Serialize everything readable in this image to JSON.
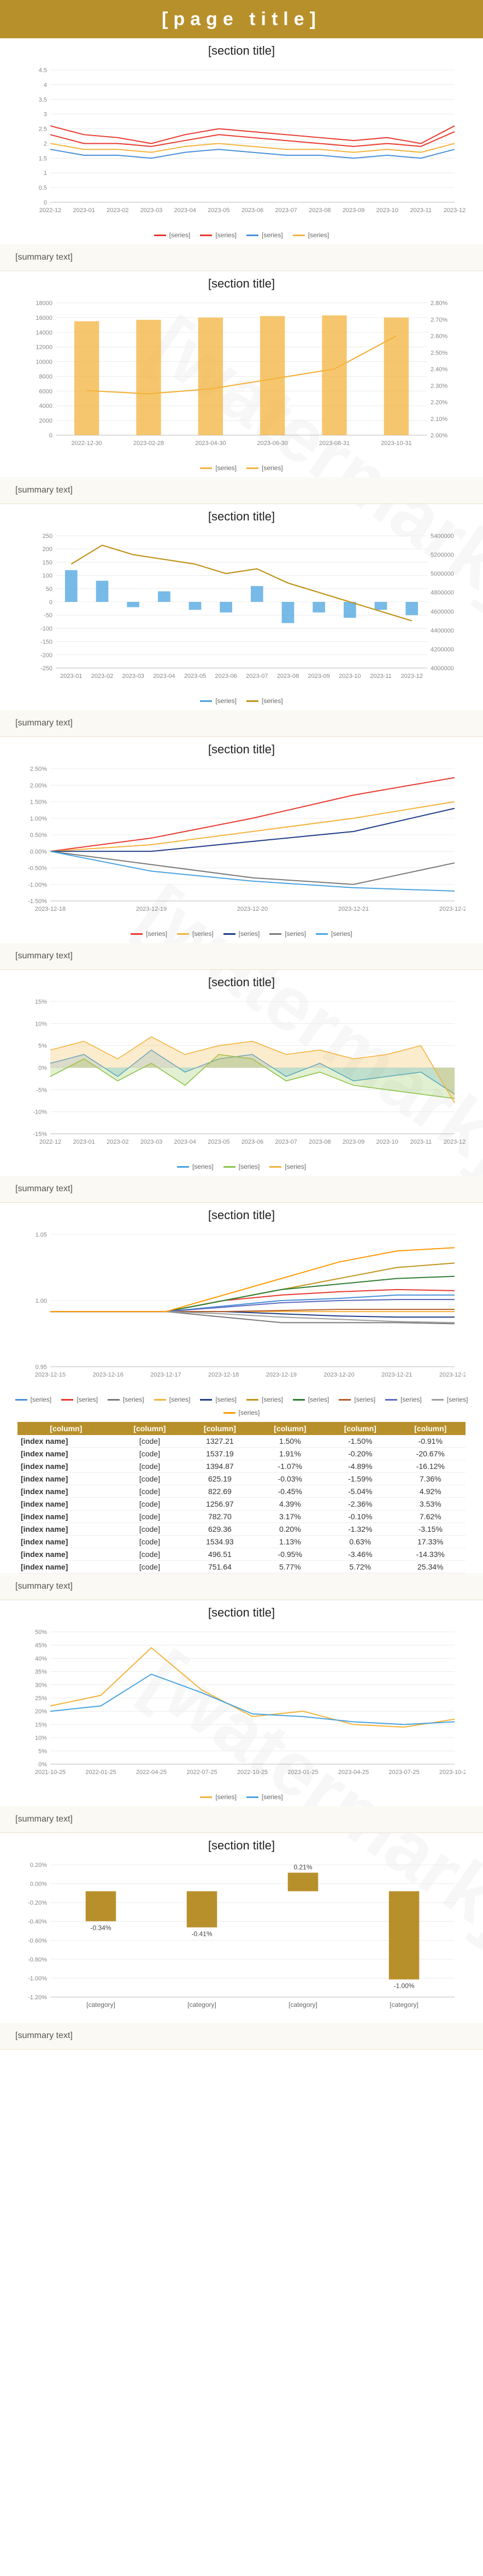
{
  "header": {
    "title": "[page title]"
  },
  "sections": [
    {
      "id": "dispersion",
      "title": "[section title]",
      "note": "[summary text]"
    },
    {
      "id": "margin",
      "title": "[section title]",
      "note": "[summary text]"
    },
    {
      "id": "northbound",
      "title": "[section title]",
      "note": "[summary text]"
    },
    {
      "id": "styles",
      "title": "[section title]",
      "note": "[summary text]"
    },
    {
      "id": "basis",
      "title": "[section title]",
      "note": "[summary text]"
    },
    {
      "id": "commodity",
      "title": "[section title]",
      "note": "[summary text]"
    },
    {
      "id": "commvol",
      "title": "[section title]",
      "note": "[summary text]"
    },
    {
      "id": "strategies",
      "title": "[section title]",
      "note": "[summary text]"
    }
  ],
  "commodity_table": {
    "headers": [
      "[column]",
      "[column]",
      "[column]",
      "[column]",
      "[column]",
      "[column]"
    ],
    "rows": [
      [
        "[index name]",
        "[code]",
        "1327.21",
        "1.50%",
        "-1.50%",
        "-0.91%"
      ],
      [
        "[index name]",
        "[code]",
        "1537.19",
        "1.91%",
        "-0.20%",
        "-20.67%"
      ],
      [
        "[index name]",
        "[code]",
        "1394.87",
        "-1.07%",
        "-4.89%",
        "-16.12%"
      ],
      [
        "[index name]",
        "[code]",
        "625.19",
        "-0.03%",
        "-1.59%",
        "7.36%"
      ],
      [
        "[index name]",
        "[code]",
        "822.69",
        "-0.45%",
        "-5.04%",
        "4.92%"
      ],
      [
        "[index name]",
        "[code]",
        "1256.97",
        "4.39%",
        "-2.36%",
        "3.53%"
      ],
      [
        "[index name]",
        "[code]",
        "782.70",
        "3.17%",
        "-0.10%",
        "7.62%"
      ],
      [
        "[index name]",
        "[code]",
        "629.36",
        "0.20%",
        "-1.32%",
        "-3.15%"
      ],
      [
        "[index name]",
        "[code]",
        "1534.93",
        "1.13%",
        "0.63%",
        "17.33%"
      ],
      [
        "[index name]",
        "[code]",
        "496.51",
        "-0.95%",
        "-3.46%",
        "-14.33%"
      ],
      [
        "[index name]",
        "[code]",
        "751.64",
        "5.77%",
        "5.72%",
        "25.34%"
      ]
    ]
  },
  "chart_data": [
    {
      "id": "dispersion",
      "type": "line",
      "title": "[chart title]",
      "ylim": [
        0,
        4.5
      ],
      "yticks": [
        "0",
        "0.5",
        "1",
        "1.5",
        "2",
        "2.5",
        "3",
        "3.5",
        "4",
        "4.5"
      ],
      "x": [
        "2022-12",
        "2023-01",
        "2023-02",
        "2023-03",
        "2023-04",
        "2023-05",
        "2023-06",
        "2023-07",
        "2023-08",
        "2023-09",
        "2023-10",
        "2023-11",
        "2023-12"
      ],
      "series": [
        {
          "name": "[series]",
          "color": "#e8392f",
          "values": [
            2.6,
            2.3,
            2.2,
            2.0,
            2.3,
            2.5,
            2.4,
            2.3,
            2.2,
            2.1,
            2.2,
            2.0,
            2.6
          ]
        },
        {
          "name": "[series]",
          "color": "#e8392f",
          "values": [
            2.3,
            2.0,
            2.0,
            1.9,
            2.1,
            2.3,
            2.2,
            2.1,
            2.0,
            1.9,
            2.0,
            1.9,
            2.4
          ]
        },
        {
          "name": "[series]",
          "color": "#4a90d9",
          "values": [
            1.8,
            1.6,
            1.6,
            1.5,
            1.7,
            1.8,
            1.7,
            1.6,
            1.6,
            1.5,
            1.6,
            1.5,
            1.8
          ]
        },
        {
          "name": "[series]",
          "color": "#f3b33d",
          "values": [
            2.0,
            1.8,
            1.8,
            1.7,
            1.9,
            2.0,
            1.9,
            1.8,
            1.8,
            1.7,
            1.8,
            1.7,
            2.0
          ]
        }
      ]
    },
    {
      "id": "margin",
      "type": "bar",
      "title": "[chart title]",
      "ylim": [
        0,
        18000
      ],
      "y2lim": [
        2.0,
        2.8
      ],
      "yticks": [
        "0",
        "2000",
        "4000",
        "6000",
        "8000",
        "10000",
        "12000",
        "14000",
        "16000",
        "18000"
      ],
      "y2ticks": [
        "2.00%",
        "2.10%",
        "2.20%",
        "2.30%",
        "2.40%",
        "2.50%",
        "2.60%",
        "2.70%",
        "2.80%"
      ],
      "x": [
        "2022-12-30",
        "2023-02-28",
        "2023-04-30",
        "2023-06-30",
        "2023-08-31",
        "2023-10-31"
      ],
      "series": [
        {
          "name": "[series]",
          "color": "#f3b33d",
          "values": [
            15500,
            15700,
            16000,
            16200,
            16300,
            16000
          ]
        },
        {
          "name": "[series]",
          "color": "#f3b33d",
          "values": [
            2.27,
            2.25,
            2.28,
            2.34,
            2.4,
            2.6
          ]
        }
      ]
    },
    {
      "id": "northbound",
      "type": "bar",
      "title": "[chart title]",
      "ylim": [
        -250,
        250
      ],
      "y2lim": [
        4000000,
        5400000
      ],
      "yticks": [
        "-250",
        "-200",
        "-150",
        "-100",
        "-50",
        "0",
        "50",
        "100",
        "150",
        "200",
        "250"
      ],
      "y2ticks": [
        "4000000",
        "4200000",
        "4400000",
        "4600000",
        "4800000",
        "5000000",
        "5200000",
        "5400000"
      ],
      "x": [
        "2023-01",
        "2023-02",
        "2023-03",
        "2023-04",
        "2023-05",
        "2023-06",
        "2023-07",
        "2023-08",
        "2023-09",
        "2023-10",
        "2023-11",
        "2023-12"
      ],
      "series": [
        {
          "name": "[series]",
          "color": "#4aa3df",
          "values": [
            120,
            80,
            -20,
            40,
            -30,
            -40,
            60,
            -80,
            -40,
            -60,
            -30,
            -50
          ]
        },
        {
          "name": "[series]",
          "color": "#c0941b",
          "values": [
            5100000,
            5300000,
            5200000,
            5150000,
            5100000,
            5000000,
            5050000,
            4900000,
            4800000,
            4700000,
            4600000,
            4500000
          ]
        }
      ]
    },
    {
      "id": "styles",
      "type": "line",
      "title": "[chart title]",
      "ylim": [
        -0.015,
        0.025
      ],
      "yticks": [
        "-1.50%",
        "-1.00%",
        "-0.50%",
        "0.00%",
        "0.50%",
        "1.00%",
        "1.50%",
        "2.00%",
        "2.50%"
      ],
      "x": [
        "2023-12-18",
        "2023-12-19",
        "2023-12-20",
        "2023-12-21",
        "2023-12-22"
      ],
      "series": [
        {
          "name": "[series]",
          "color": "#e8392f",
          "values": [
            0.0,
            0.004,
            0.01,
            0.017,
            0.0223
          ]
        },
        {
          "name": "[series]",
          "color": "#f3b33d",
          "values": [
            0.0,
            0.002,
            0.006,
            0.01,
            0.015
          ]
        },
        {
          "name": "[series]",
          "color": "#1f3c88",
          "values": [
            0.0,
            0.0,
            0.003,
            0.006,
            0.013
          ]
        },
        {
          "name": "[series]",
          "color": "#7a7a7a",
          "values": [
            0.0,
            -0.004,
            -0.008,
            -0.01,
            -0.0035
          ]
        },
        {
          "name": "[series]",
          "color": "#4aa3df",
          "values": [
            0.0,
            -0.006,
            -0.009,
            -0.011,
            -0.012
          ]
        }
      ]
    },
    {
      "id": "basis",
      "type": "area",
      "title": "[chart title]",
      "ylim": [
        -15,
        15
      ],
      "yticks": [
        "-15%",
        "-10%",
        "-5%",
        "0%",
        "5%",
        "10%",
        "15%"
      ],
      "x": [
        "2022-12",
        "2023-01",
        "2023-02",
        "2023-03",
        "2023-04",
        "2023-05",
        "2023-06",
        "2023-07",
        "2023-08",
        "2023-09",
        "2023-10",
        "2023-11",
        "2023-12"
      ],
      "series": [
        {
          "name": "[series]",
          "color": "#4aa3df",
          "values": [
            1.0,
            3.0,
            -2.0,
            4.0,
            -1.0,
            2.0,
            3.0,
            -2.0,
            1.0,
            -3.0,
            -2.0,
            -1.0,
            -6.0
          ]
        },
        {
          "name": "[series]",
          "color": "#8bc34a",
          "values": [
            -2.0,
            2.0,
            -3.0,
            1.0,
            -4.0,
            3.0,
            2.0,
            -3.0,
            -1.0,
            -4.0,
            -5.0,
            -6.0,
            -7.0
          ]
        },
        {
          "name": "[series]",
          "color": "#f3b33d",
          "values": [
            4.0,
            6.0,
            2.0,
            7.0,
            3.0,
            5.0,
            6.0,
            3.0,
            4.0,
            2.0,
            3.0,
            5.0,
            -8.0
          ]
        }
      ]
    },
    {
      "id": "commodity",
      "type": "line",
      "title": "[chart title]",
      "ylim": [
        0.95,
        1.07
      ],
      "yticks": [
        "0.95",
        "1.00",
        "1.05"
      ],
      "x": [
        "2023-12-15",
        "2023-12-16",
        "2023-12-17",
        "2023-12-18",
        "2023-12-19",
        "2023-12-20",
        "2023-12-21",
        "2023-12-22"
      ],
      "series": [
        {
          "name": "[series]",
          "color": "#4a90d9",
          "values": [
            1.0,
            1.0,
            1.0,
            1.005,
            1.01,
            1.012,
            1.015,
            1.015
          ]
        },
        {
          "name": "[series]",
          "color": "#e8392f",
          "values": [
            1.0,
            1.0,
            1.0,
            1.01,
            1.015,
            1.018,
            1.02,
            1.019
          ]
        },
        {
          "name": "[series]",
          "color": "#7a7a7a",
          "values": [
            1.0,
            1.0,
            1.0,
            0.995,
            0.99,
            0.99,
            0.99,
            0.989
          ]
        },
        {
          "name": "[series]",
          "color": "#f3b33d",
          "values": [
            1.0,
            1.0,
            1.0,
            1.0,
            1.0,
            1.0,
            1.0,
            1.0
          ]
        },
        {
          "name": "[series]",
          "color": "#1f3c88",
          "values": [
            1.0,
            1.0,
            1.0,
            1.0,
            0.998,
            0.996,
            0.995,
            0.995
          ]
        },
        {
          "name": "[series]",
          "color": "#c0941b",
          "values": [
            1.0,
            1.0,
            1.0,
            1.01,
            1.02,
            1.03,
            1.04,
            1.044
          ]
        },
        {
          "name": "[series]",
          "color": "#2e7d32",
          "values": [
            1.0,
            1.0,
            1.0,
            1.01,
            1.02,
            1.025,
            1.03,
            1.032
          ]
        },
        {
          "name": "[series]",
          "color": "#b55c2c",
          "values": [
            1.0,
            1.0,
            1.0,
            1.0,
            1.001,
            1.002,
            1.002,
            1.002
          ]
        },
        {
          "name": "[series]",
          "color": "#5c6bc0",
          "values": [
            1.0,
            1.0,
            1.0,
            1.004,
            1.008,
            1.01,
            1.011,
            1.011
          ]
        },
        {
          "name": "[series]",
          "color": "#9e9e9e",
          "values": [
            1.0,
            1.0,
            1.0,
            0.998,
            0.995,
            0.993,
            0.991,
            0.99
          ]
        },
        {
          "name": "[series]",
          "color": "#ff9800",
          "values": [
            1.0,
            1.0,
            1.0,
            1.015,
            1.03,
            1.045,
            1.055,
            1.058
          ]
        }
      ]
    },
    {
      "id": "commvol",
      "type": "line",
      "title": "[chart title]",
      "ylim": [
        0,
        50
      ],
      "yticks": [
        "0%",
        "5%",
        "10%",
        "15%",
        "20%",
        "25%",
        "30%",
        "35%",
        "40%",
        "45%",
        "50%"
      ],
      "x": [
        "2021-10-25",
        "2022-01-25",
        "2022-04-25",
        "2022-07-25",
        "2022-10-25",
        "2023-01-25",
        "2023-04-25",
        "2023-07-25",
        "2023-10-25"
      ],
      "series": [
        {
          "name": "[series]",
          "color": "#f3b33d",
          "values": [
            22,
            26,
            44,
            28,
            18,
            20,
            15,
            14,
            17
          ]
        },
        {
          "name": "[series]",
          "color": "#4aa3df",
          "values": [
            20,
            22,
            34,
            27,
            19,
            18,
            16,
            15,
            16
          ]
        }
      ]
    },
    {
      "id": "strategies",
      "type": "bar",
      "title": "[chart title]",
      "ylim": [
        -1.2,
        0.3
      ],
      "yticks": [
        "-1.20%",
        "-1.00%",
        "-0.80%",
        "-0.60%",
        "-0.40%",
        "-0.20%",
        "0.00%",
        "0.20%"
      ],
      "categories": [
        "[category]",
        "[category]",
        "[category]",
        "[category]"
      ],
      "values": [
        -0.34,
        -0.41,
        0.21,
        -1.0
      ]
    }
  ]
}
